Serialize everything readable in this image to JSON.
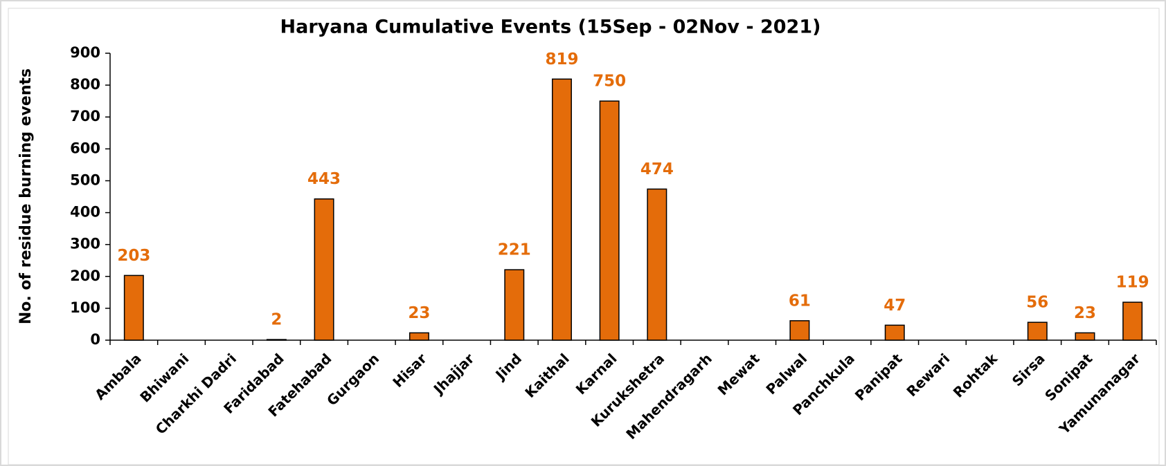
{
  "chart_data": {
    "type": "bar",
    "title": "Haryana Cumulative Events (15Sep - 02Nov - 2021)",
    "y_label": "No. of residue burning events",
    "categories": [
      "Ambala",
      "Bhiwani",
      "Charkhi Dadri",
      "Faridabad",
      "Fatehabad",
      "Gurgaon",
      "Hisar",
      "Jhajjar",
      "Jind",
      "Kaithal",
      "Karnal",
      "Kurukshetra",
      "Mahendragarh",
      "Mewat",
      "Palwal",
      "Panchkula",
      "Panipat",
      "Rewari",
      "Rohtak",
      "Sirsa",
      "Sonipat",
      "Yamunanagar"
    ],
    "values": [
      203,
      0,
      0,
      2,
      443,
      0,
      23,
      0,
      221,
      819,
      750,
      474,
      0,
      0,
      61,
      0,
      47,
      0,
      0,
      56,
      23,
      119
    ],
    "color": "#e46c0a",
    "label_color": "#e46c0a",
    "ylim": [
      0,
      900
    ],
    "yticks": [
      0,
      100,
      200,
      300,
      400,
      500,
      600,
      700,
      800,
      900
    ],
    "grid": false
  }
}
